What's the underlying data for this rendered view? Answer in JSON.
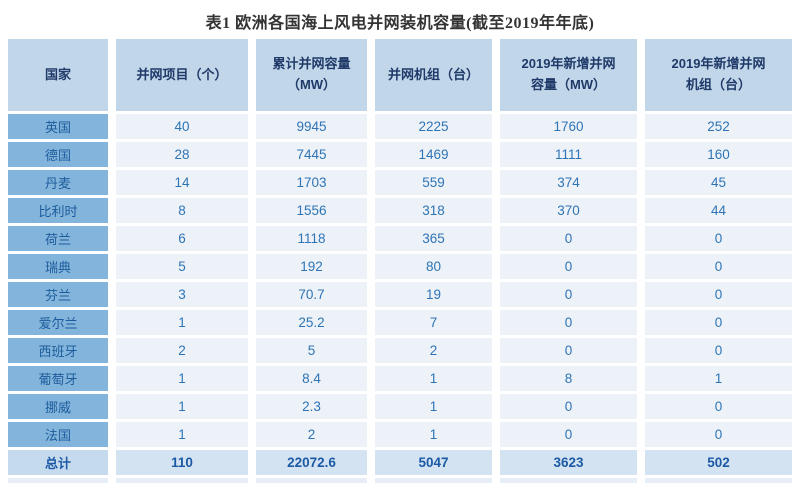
{
  "title": "表1 欧洲各国海上风电并网装机容量(截至2019年年底)",
  "table": {
    "columns": [
      "国家",
      "并网项目（个）",
      "累计并网容量\n（MW）",
      "并网机组（台）",
      "2019年新增并网\n容量（MW）",
      "2019年新增并网\n机组（台）"
    ],
    "rows": [
      {
        "country": "英国",
        "projects": "40",
        "capacity": "9945",
        "units": "2225",
        "new_capacity": "1760",
        "new_units": "252"
      },
      {
        "country": "德国",
        "projects": "28",
        "capacity": "7445",
        "units": "1469",
        "new_capacity": "1111",
        "new_units": "160"
      },
      {
        "country": "丹麦",
        "projects": "14",
        "capacity": "1703",
        "units": "559",
        "new_capacity": "374",
        "new_units": "45"
      },
      {
        "country": "比利时",
        "projects": "8",
        "capacity": "1556",
        "units": "318",
        "new_capacity": "370",
        "new_units": "44"
      },
      {
        "country": "荷兰",
        "projects": "6",
        "capacity": "1118",
        "units": "365",
        "new_capacity": "0",
        "new_units": "0"
      },
      {
        "country": "瑞典",
        "projects": "5",
        "capacity": "192",
        "units": "80",
        "new_capacity": "0",
        "new_units": "0"
      },
      {
        "country": "芬兰",
        "projects": "3",
        "capacity": "70.7",
        "units": "19",
        "new_capacity": "0",
        "new_units": "0"
      },
      {
        "country": "爱尔兰",
        "projects": "1",
        "capacity": "25.2",
        "units": "7",
        "new_capacity": "0",
        "new_units": "0"
      },
      {
        "country": "西班牙",
        "projects": "2",
        "capacity": "5",
        "units": "2",
        "new_capacity": "0",
        "new_units": "0"
      },
      {
        "country": "葡萄牙",
        "projects": "1",
        "capacity": "8.4",
        "units": "1",
        "new_capacity": "8",
        "new_units": "1"
      },
      {
        "country": "挪威",
        "projects": "1",
        "capacity": "2.3",
        "units": "1",
        "new_capacity": "0",
        "new_units": "0"
      },
      {
        "country": "法国",
        "projects": "1",
        "capacity": "2",
        "units": "1",
        "new_capacity": "0",
        "new_units": "0"
      }
    ],
    "total": {
      "country": "总计",
      "projects": "110",
      "capacity": "22072.6",
      "units": "5047",
      "new_capacity": "3623",
      "new_units": "502"
    }
  },
  "colors": {
    "title_text": "#333333",
    "header_bg": "#C2D6EA",
    "header_text": "#1F3A68",
    "country_bg": "#83B5DC",
    "country_text": "#1D5C9C",
    "cell_bg": "#EDF2F9",
    "cell_text": "#2E74B5",
    "total_label_bg": "#C6DAEE",
    "total_cell_bg": "#D3E3F2",
    "total_text": "#1C5AA5",
    "cutoff_bg": "#E7EEF7"
  }
}
